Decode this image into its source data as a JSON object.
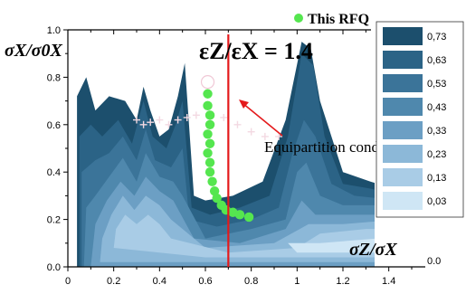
{
  "chart_data": {
    "type": "heatmap",
    "subtype": "filled-contour stability chart with overlay",
    "x_axis": {
      "label": "σZ/σX",
      "range": [
        0,
        1.5
      ],
      "ticks": [
        0,
        0.2,
        0.4,
        0.6,
        0.8,
        1.0,
        1.2,
        1.4
      ],
      "tick_labels": [
        "0",
        "0.2",
        "0.4",
        "0.6",
        "0.8",
        "1",
        "1.2",
        "1.4"
      ]
    },
    "y_axis": {
      "label": "σX/σ0X",
      "range": [
        0,
        1.0
      ],
      "ticks": [
        0,
        0.2,
        0.4,
        0.6,
        0.8,
        1.0
      ],
      "tick_labels": [
        "0.0",
        "0.2",
        "0.4",
        "0.6",
        "0.8",
        "1.0"
      ]
    },
    "grid": false,
    "legend": {
      "placement": "top-right",
      "levels": [
        {
          "label": "0,73",
          "color": "#1c4f6d"
        },
        {
          "label": "0,63",
          "color": "#2b6386"
        },
        {
          "label": "0,53",
          "color": "#3b7499"
        },
        {
          "label": "0,43",
          "color": "#4f88ad"
        },
        {
          "label": "0,33",
          "color": "#6c9fc4"
        },
        {
          "label": "0,23",
          "color": "#8cb8d8"
        },
        {
          "label": "0,13",
          "color": "#a9cce6"
        },
        {
          "label": "0,03",
          "color": "#cfe6f5"
        }
      ]
    },
    "contour_regions": [
      {
        "level": 7,
        "points": [
          [
            0.04,
            0.0
          ],
          [
            0.04,
            0.72
          ],
          [
            0.08,
            0.8
          ],
          [
            0.12,
            0.66
          ],
          [
            0.18,
            0.72
          ],
          [
            0.25,
            0.7
          ],
          [
            0.3,
            0.62
          ],
          [
            0.33,
            0.76
          ],
          [
            0.36,
            0.66
          ],
          [
            0.4,
            0.55
          ],
          [
            0.44,
            0.58
          ],
          [
            0.48,
            0.72
          ],
          [
            0.51,
            0.86
          ],
          [
            0.55,
            0.3
          ],
          [
            0.6,
            0.28
          ],
          [
            0.72,
            0.3
          ],
          [
            0.85,
            0.36
          ],
          [
            0.95,
            0.62
          ],
          [
            1.02,
            0.95
          ],
          [
            1.06,
            0.92
          ],
          [
            1.1,
            0.7
          ],
          [
            1.15,
            0.55
          ],
          [
            1.2,
            0.4
          ],
          [
            1.32,
            0.36
          ],
          [
            1.45,
            0.32
          ],
          [
            1.45,
            0.0
          ]
        ]
      },
      {
        "level": 6,
        "points": [
          [
            0.05,
            0.0
          ],
          [
            0.05,
            0.55
          ],
          [
            0.1,
            0.6
          ],
          [
            0.15,
            0.55
          ],
          [
            0.22,
            0.62
          ],
          [
            0.28,
            0.52
          ],
          [
            0.33,
            0.7
          ],
          [
            0.37,
            0.55
          ],
          [
            0.43,
            0.5
          ],
          [
            0.47,
            0.6
          ],
          [
            0.5,
            0.7
          ],
          [
            0.54,
            0.25
          ],
          [
            0.62,
            0.22
          ],
          [
            0.75,
            0.25
          ],
          [
            0.88,
            0.3
          ],
          [
            0.96,
            0.55
          ],
          [
            1.02,
            0.9
          ],
          [
            1.07,
            0.85
          ],
          [
            1.12,
            0.55
          ],
          [
            1.2,
            0.35
          ],
          [
            1.32,
            0.33
          ],
          [
            1.45,
            0.3
          ],
          [
            1.45,
            0.0
          ]
        ]
      },
      {
        "level": 5,
        "points": [
          [
            0.06,
            0.0
          ],
          [
            0.06,
            0.4
          ],
          [
            0.12,
            0.45
          ],
          [
            0.18,
            0.48
          ],
          [
            0.24,
            0.55
          ],
          [
            0.3,
            0.45
          ],
          [
            0.34,
            0.58
          ],
          [
            0.38,
            0.45
          ],
          [
            0.45,
            0.42
          ],
          [
            0.5,
            0.5
          ],
          [
            0.53,
            0.2
          ],
          [
            0.65,
            0.17
          ],
          [
            0.8,
            0.2
          ],
          [
            0.92,
            0.25
          ],
          [
            0.98,
            0.48
          ],
          [
            1.03,
            0.62
          ],
          [
            1.08,
            0.55
          ],
          [
            1.15,
            0.35
          ],
          [
            1.25,
            0.3
          ],
          [
            1.45,
            0.28
          ],
          [
            1.45,
            0.0
          ]
        ]
      },
      {
        "level": 4,
        "points": [
          [
            0.07,
            0.0
          ],
          [
            0.08,
            0.25
          ],
          [
            0.12,
            0.3
          ],
          [
            0.18,
            0.38
          ],
          [
            0.24,
            0.46
          ],
          [
            0.3,
            0.36
          ],
          [
            0.34,
            0.48
          ],
          [
            0.4,
            0.38
          ],
          [
            0.46,
            0.36
          ],
          [
            0.5,
            0.3
          ],
          [
            0.6,
            0.12
          ],
          [
            0.8,
            0.16
          ],
          [
            0.95,
            0.2
          ],
          [
            1.0,
            0.4
          ],
          [
            1.04,
            0.44
          ],
          [
            1.1,
            0.3
          ],
          [
            1.2,
            0.26
          ],
          [
            1.45,
            0.26
          ],
          [
            1.45,
            0.0
          ]
        ]
      },
      {
        "level": 3,
        "points": [
          [
            0.1,
            0.0
          ],
          [
            0.12,
            0.18
          ],
          [
            0.17,
            0.28
          ],
          [
            0.23,
            0.36
          ],
          [
            0.29,
            0.3
          ],
          [
            0.34,
            0.38
          ],
          [
            0.4,
            0.32
          ],
          [
            0.46,
            0.28
          ],
          [
            0.55,
            0.12
          ],
          [
            0.75,
            0.1
          ],
          [
            0.95,
            0.16
          ],
          [
            1.02,
            0.28
          ],
          [
            1.08,
            0.22
          ],
          [
            1.2,
            0.22
          ],
          [
            1.45,
            0.22
          ],
          [
            1.45,
            0.0
          ]
        ]
      },
      {
        "level": 2,
        "points": [
          [
            0.14,
            0.02
          ],
          [
            0.15,
            0.12
          ],
          [
            0.19,
            0.22
          ],
          [
            0.24,
            0.3
          ],
          [
            0.29,
            0.24
          ],
          [
            0.34,
            0.3
          ],
          [
            0.4,
            0.26
          ],
          [
            0.45,
            0.2
          ],
          [
            0.6,
            0.08
          ],
          [
            0.9,
            0.1
          ],
          [
            1.05,
            0.18
          ],
          [
            1.2,
            0.18
          ],
          [
            1.45,
            0.2
          ],
          [
            1.45,
            0.02
          ]
        ]
      },
      {
        "level": 1,
        "points": [
          [
            0.2,
            0.08
          ],
          [
            0.21,
            0.16
          ],
          [
            0.25,
            0.22
          ],
          [
            0.3,
            0.18
          ],
          [
            0.35,
            0.22
          ],
          [
            0.4,
            0.18
          ],
          [
            0.45,
            0.12
          ],
          [
            0.7,
            0.06
          ],
          [
            1.0,
            0.08
          ],
          [
            1.1,
            0.14
          ],
          [
            1.3,
            0.16
          ],
          [
            1.45,
            0.16
          ],
          [
            1.45,
            0.04
          ],
          [
            1.0,
            0.04
          ],
          [
            0.6,
            0.04
          ]
        ]
      },
      {
        "level": 0,
        "points": [
          [
            0.96,
            0.1
          ],
          [
            1.1,
            0.1
          ],
          [
            1.35,
            0.12
          ],
          [
            1.45,
            0.12
          ],
          [
            1.45,
            0.06
          ],
          [
            1.2,
            0.06
          ],
          [
            1.0,
            0.06
          ]
        ]
      }
    ],
    "overlay_series": [
      {
        "name": "This RFQ",
        "color": "#55e64f",
        "marker": "circle",
        "x": [
          0.61,
          0.61,
          0.62,
          0.62,
          0.61,
          0.62,
          0.61,
          0.62,
          0.62,
          0.63,
          0.64,
          0.65,
          0.67,
          0.69,
          0.72,
          0.75,
          0.79
        ],
        "y": [
          0.73,
          0.68,
          0.64,
          0.6,
          0.56,
          0.52,
          0.48,
          0.44,
          0.4,
          0.36,
          0.32,
          0.29,
          0.26,
          0.24,
          0.23,
          0.22,
          0.21
        ]
      }
    ],
    "vertical_line": {
      "x": 0.7,
      "color": "#e41a1c"
    },
    "annotations": {
      "ratio_text": "εZ/εX = 1.4",
      "arrow_text": "Equipartition condition"
    }
  }
}
